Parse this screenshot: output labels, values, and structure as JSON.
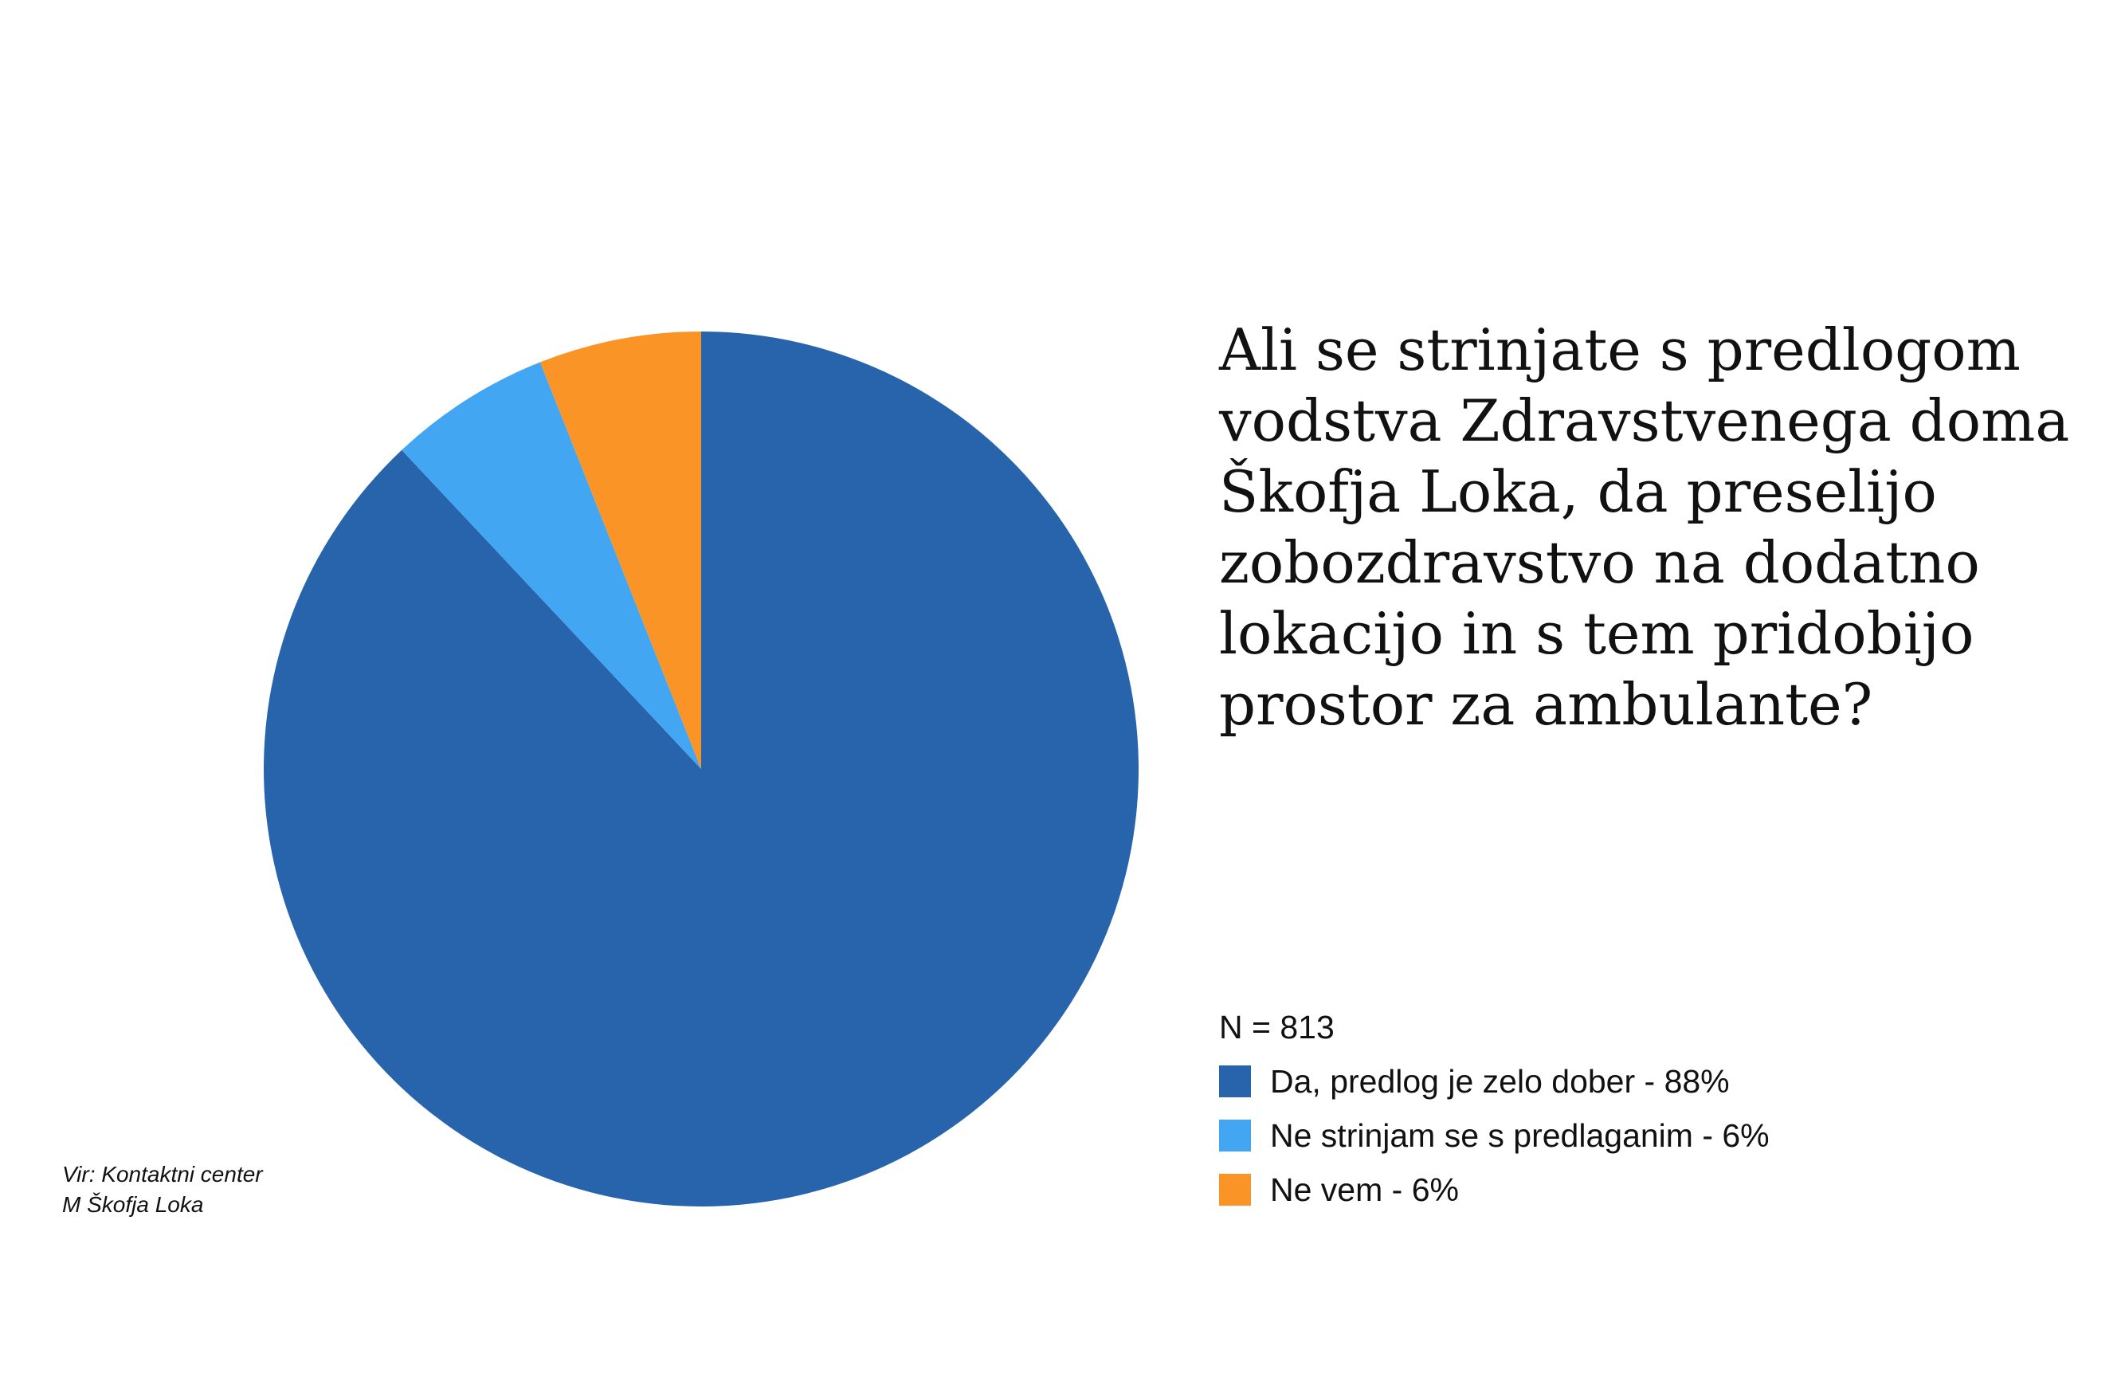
{
  "chart_data": {
    "type": "pie",
    "title_lines": [
      "Ali se strinjate s predlogom",
      "vodstva Zdravstvenega doma",
      "Škofja Loka, da preselijo",
      "zobozdravstvo na dodatno",
      "lokacijo in s tem pridobijo",
      "prostor za ambulante?"
    ],
    "n_label": "N = 813",
    "legend_placement": "bottom-right",
    "slices": [
      {
        "label": "Da, predlog je zelo dober - 88%",
        "value": 88,
        "color": "#2764ab"
      },
      {
        "label": "Ne strinjam se s predlaganim - 6%",
        "value": 6,
        "color": "#42a6f3"
      },
      {
        "label": "Ne vem - 6%",
        "value": 6,
        "color": "#fb9426"
      }
    ],
    "source_lines": [
      "Vir: Kontaktni center",
      "M Škofja Loka"
    ]
  }
}
